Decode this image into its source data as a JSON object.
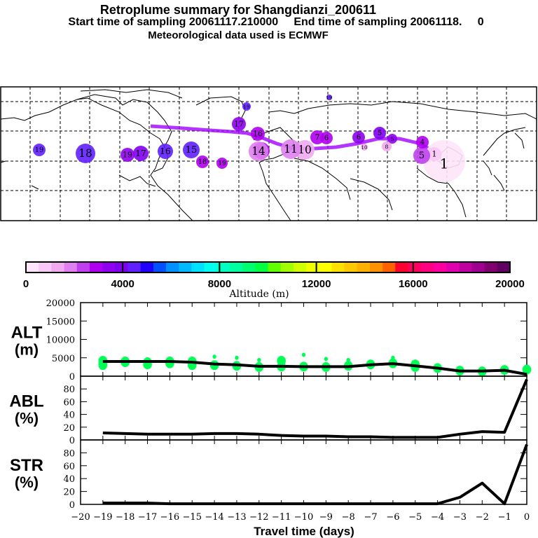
{
  "header": {
    "title": "Retroplume summary for Shangdianzi_200611",
    "subtitle": "Start time of sampling 20061117.210000     End time of sampling 20061118.     0",
    "met_line": "Meteorological data used is ECMWF"
  },
  "map": {
    "description": "Northern hemisphere map with retroplume cluster centroids colored by altitude and labelled by days back",
    "clusters": [
      {
        "label": "1",
        "lon": 117,
        "lat": 40,
        "alt_m": 500,
        "size": "large"
      },
      {
        "label": "1",
        "lon": 113,
        "lat": 41,
        "alt_m": 1000,
        "size": "medium"
      },
      {
        "label": "5",
        "lon": 107,
        "lat": 42,
        "alt_m": 2500,
        "size": "medium"
      },
      {
        "label": "4",
        "lon": 105,
        "lat": 46,
        "alt_m": 3000,
        "size": "medium"
      },
      {
        "label": "5",
        "lon": 85,
        "lat": 48,
        "alt_m": 4000,
        "size": "medium"
      },
      {
        "label": "5",
        "lon": 92,
        "lat": 47,
        "alt_m": 3500,
        "size": "small"
      },
      {
        "label": "6",
        "lon": 80,
        "lat": 47,
        "alt_m": 3600,
        "size": "medium"
      },
      {
        "label": "6",
        "lon": 64,
        "lat": 46,
        "alt_m": 3000,
        "size": "medium"
      },
      {
        "label": "7",
        "lon": 56,
        "lat": 46,
        "alt_m": 3000,
        "size": "medium"
      },
      {
        "label": "8",
        "lon": 73,
        "lat": 43,
        "alt_m": 1500,
        "size": "small"
      },
      {
        "label": "10",
        "lon": 58,
        "lat": 42,
        "alt_m": 1500,
        "size": "small"
      },
      {
        "label": "10",
        "lon": 10,
        "lat": 43,
        "alt_m": 1200,
        "size": "large"
      },
      {
        "label": "11",
        "lon": 3,
        "lat": 43,
        "alt_m": 2000,
        "size": "large"
      },
      {
        "label": "14",
        "lon": -14,
        "lat": 43,
        "alt_m": 3000,
        "size": "large"
      },
      {
        "label": "14",
        "lon": -2,
        "lat": 40,
        "alt_m": 2000,
        "size": "large"
      },
      {
        "label": "16",
        "lon": -10,
        "lat": 50,
        "alt_m": 3000,
        "size": "medium"
      },
      {
        "label": "17",
        "lon": -26,
        "lat": 54,
        "alt_m": 3500,
        "size": "medium"
      },
      {
        "label": "15",
        "lon": -62,
        "lat": 42,
        "alt_m": 4500,
        "size": "large"
      },
      {
        "label": "16",
        "lon": -91,
        "lat": 42,
        "alt_m": 4500,
        "size": "large"
      },
      {
        "label": "17",
        "lon": -115,
        "lat": 39,
        "alt_m": 4200,
        "size": "large"
      },
      {
        "label": "19",
        "lon": -130,
        "lat": 39,
        "alt_m": 3500,
        "size": "large"
      },
      {
        "label": "18",
        "lon": -170,
        "lat": 40,
        "alt_m": 4500,
        "size": "large"
      },
      {
        "label": "19",
        "lon": -215,
        "lat": 41,
        "alt_m": 4500,
        "size": "medium"
      },
      {
        "label": "18",
        "lon": -44,
        "lat": 31,
        "alt_m": 3000,
        "size": "medium"
      },
      {
        "label": "19",
        "lon": -30,
        "lat": 31,
        "alt_m": 2800,
        "size": "medium"
      },
      {
        "label": "19",
        "lon": 0,
        "lat": 72,
        "alt_m": 4500,
        "size": "small"
      },
      {
        "label": "19",
        "lon": -71,
        "lat": 86,
        "alt_m": 4500,
        "size": "small"
      }
    ]
  },
  "colorbar": {
    "label": "Altitude (m)",
    "ticks": [
      "0",
      "4000",
      "8000",
      "12000",
      "16000",
      "20000"
    ],
    "colors": [
      "#ffe4fa",
      "#f8c8f6",
      "#f0aaf0",
      "#e080f0",
      "#c040f0",
      "#b000f0",
      "#9000f0",
      "#8000f0",
      "#6020ff",
      "#2000ff",
      "#0050ff",
      "#0090ff",
      "#00b8ff",
      "#00e0ff",
      "#00ffee",
      "#00ffc0",
      "#00ffa0",
      "#00ff70",
      "#00ff40",
      "#60ff00",
      "#a0ff00",
      "#d0ff00",
      "#f0ff00",
      "#ffff00",
      "#ffe000",
      "#ffc800",
      "#ffb000",
      "#ff9000",
      "#ff6000",
      "#ff0030",
      "#ff0060",
      "#ff0080",
      "#ff00a0",
      "#e000b0",
      "#c000a0",
      "#a00090",
      "#800070",
      "#600060"
    ]
  },
  "chart_data": [
    {
      "type": "line",
      "name": "ALT",
      "ylabel": "ALT\n(m)",
      "ylabel_line1": "ALT",
      "ylabel_line2": "(m)",
      "ylim": [
        0,
        20000
      ],
      "yticks": [
        "0",
        "5000",
        "10000",
        "15000",
        "20000"
      ],
      "x": [
        -19,
        -18,
        -17,
        -16,
        -15,
        -14,
        -13,
        -12,
        -11,
        -10,
        -9,
        -8,
        -7,
        -6,
        -5,
        -4,
        -3,
        -2,
        -1,
        0
      ],
      "values": [
        4000,
        4000,
        4000,
        4000,
        3800,
        3300,
        3100,
        2700,
        2700,
        2600,
        2600,
        2600,
        3100,
        3400,
        2800,
        2200,
        1400,
        1400,
        1600,
        500
      ],
      "scatter_color": "#00ff55",
      "scatter": [
        {
          "x": -19,
          "ys": [
            3500,
            4200,
            3000
          ]
        },
        {
          "x": -18,
          "ys": [
            3800,
            4000
          ]
        },
        {
          "x": -17,
          "ys": [
            3800,
            3200
          ]
        },
        {
          "x": -16,
          "ys": [
            4000,
            3500
          ]
        },
        {
          "x": -15,
          "ys": [
            4000,
            3000
          ]
        },
        {
          "x": -14,
          "ys": [
            5300,
            3000
          ]
        },
        {
          "x": -13,
          "ys": [
            5000,
            2800
          ]
        },
        {
          "x": -12,
          "ys": [
            4400,
            2500
          ]
        },
        {
          "x": -11,
          "ys": [
            4200,
            2600
          ]
        },
        {
          "x": -10,
          "ys": [
            5800,
            2600
          ]
        },
        {
          "x": -9,
          "ys": [
            4700,
            2500
          ]
        },
        {
          "x": -8,
          "ys": [
            4400,
            2800
          ]
        },
        {
          "x": -7,
          "ys": [
            3200
          ]
        },
        {
          "x": -6,
          "ys": [
            5000,
            3500
          ]
        },
        {
          "x": -5,
          "ys": [
            3200,
            2500
          ]
        },
        {
          "x": -4,
          "ys": [
            2200
          ]
        },
        {
          "x": -3,
          "ys": [
            1500
          ]
        },
        {
          "x": -2,
          "ys": [
            1300
          ]
        },
        {
          "x": -1,
          "ys": [
            1700
          ]
        },
        {
          "x": 0,
          "ys": [
            1800
          ]
        }
      ]
    },
    {
      "type": "line",
      "name": "ABL",
      "ylabel_line1": "ABL",
      "ylabel_line2": "(%)",
      "ylim": [
        0,
        100
      ],
      "yticks": [
        "0",
        "20",
        "40",
        "60",
        "80"
      ],
      "x": [
        -19,
        -18,
        -17,
        -16,
        -15,
        -14,
        -13,
        -12,
        -11,
        -10,
        -9,
        -8,
        -7,
        -6,
        -5,
        -4,
        -3,
        -2,
        -1,
        0
      ],
      "values": [
        11,
        10,
        9,
        9,
        9,
        10,
        10,
        9,
        7,
        6,
        6,
        5,
        5,
        4,
        4,
        4,
        9,
        13,
        12,
        95
      ]
    },
    {
      "type": "line",
      "name": "STR",
      "ylabel_line1": "STR",
      "ylabel_line2": "(%)",
      "ylim": [
        0,
        100
      ],
      "yticks": [
        "0",
        "20",
        "40",
        "60",
        "80"
      ],
      "x": [
        -19,
        -18,
        -17,
        -16,
        -15,
        -14,
        -13,
        -12,
        -11,
        -10,
        -9,
        -8,
        -7,
        -6,
        -5,
        -4,
        -3,
        -2,
        -1,
        0
      ],
      "values": [
        2,
        2,
        2,
        1,
        1,
        1,
        1,
        1,
        1,
        1,
        1,
        1,
        1,
        1,
        1,
        1,
        11,
        33,
        1,
        93
      ],
      "xlabel": "Travel time (days)",
      "xlim": [
        -20,
        0
      ],
      "xticks": [
        "−20",
        "−19",
        "−18",
        "−17",
        "−16",
        "−15",
        "−14",
        "−13",
        "−12",
        "−11",
        "−10",
        "−9",
        "−8",
        "−7",
        "−6",
        "−5",
        "−4",
        "−3",
        "−2",
        "−1",
        "0"
      ]
    }
  ]
}
